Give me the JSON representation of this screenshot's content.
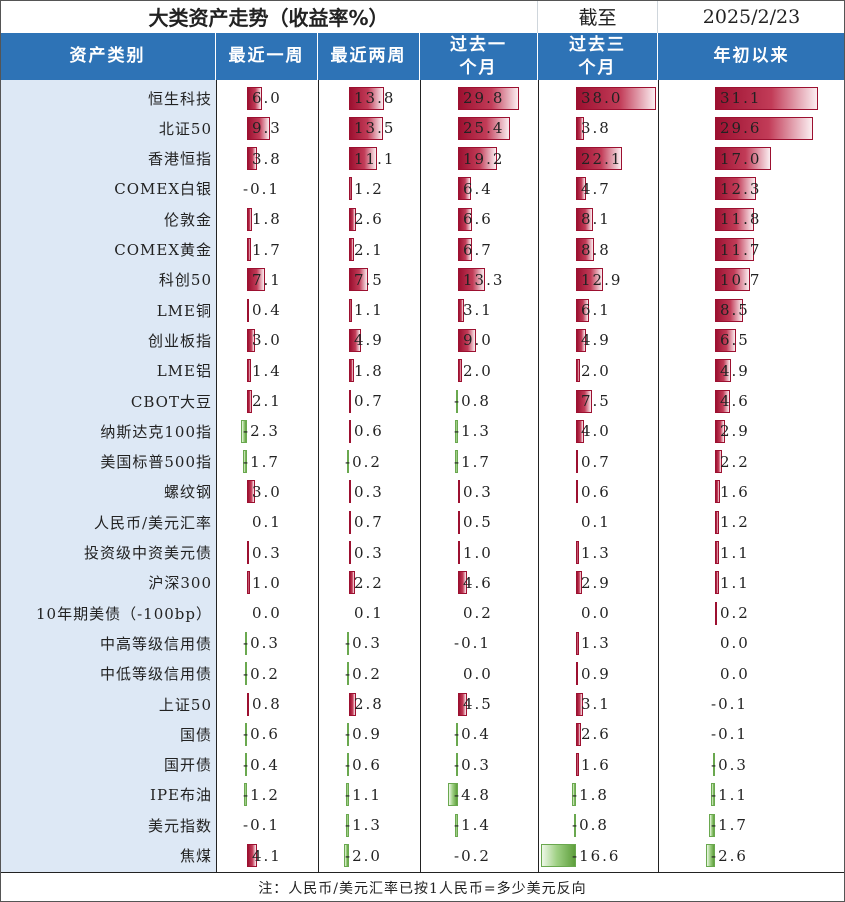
{
  "title": "大类资产走势（收益率%）",
  "as_of_label": "截至",
  "as_of_date": "2025/2/23",
  "headers": {
    "asset": "资产类别",
    "w1": "最近一周",
    "w2": "最近两周",
    "m1": "过去一个月",
    "m3": "过去三个月",
    "ytd": "年初以来"
  },
  "footnote": "注：人民币/美元汇率已按1人民币=多少美元反向",
  "colors": {
    "header_bg": "#2e73b6",
    "name_col_bg": "#dde8f5",
    "positive_bar": "#9c1030",
    "negative_bar": "#6aa84f"
  },
  "chart_data": {
    "type": "table",
    "columns": [
      "最近一周",
      "最近两周",
      "过去一个月",
      "过去三个月",
      "年初以来"
    ],
    "rows": [
      {
        "name": "恒生科技",
        "values": [
          "6.0",
          "13.8",
          "29.8",
          "38.0",
          "31.1"
        ]
      },
      {
        "name": "北证50",
        "values": [
          "9.3",
          "13.5",
          "25.4",
          "3.8",
          "29.6"
        ]
      },
      {
        "name": "香港恒指",
        "values": [
          "3.8",
          "11.1",
          "19.2",
          "22.1",
          "17.0"
        ]
      },
      {
        "name": "COMEX白银",
        "values": [
          "-0.1",
          "1.2",
          "6.4",
          "4.7",
          "12.3"
        ]
      },
      {
        "name": "伦敦金",
        "values": [
          "1.8",
          "2.6",
          "6.6",
          "8.1",
          "11.8"
        ]
      },
      {
        "name": "COMEX黄金",
        "values": [
          "1.7",
          "2.1",
          "6.7",
          "8.8",
          "11.7"
        ]
      },
      {
        "name": "科创50",
        "values": [
          "7.1",
          "7.5",
          "13.3",
          "12.9",
          "10.7"
        ]
      },
      {
        "name": "LME铜",
        "values": [
          "0.4",
          "1.1",
          "3.1",
          "6.1",
          "8.5"
        ]
      },
      {
        "name": "创业板指",
        "values": [
          "3.0",
          "4.9",
          "9.0",
          "4.9",
          "6.5"
        ]
      },
      {
        "name": "LME铝",
        "values": [
          "1.4",
          "1.8",
          "2.0",
          "2.0",
          "4.9"
        ]
      },
      {
        "name": "CBOT大豆",
        "values": [
          "2.1",
          "0.7",
          "-0.8",
          "7.5",
          "4.6"
        ]
      },
      {
        "name": "纳斯达克100指",
        "values": [
          "-2.3",
          "0.6",
          "-1.3",
          "4.0",
          "2.9"
        ]
      },
      {
        "name": "美国标普500指",
        "values": [
          "-1.7",
          "-0.2",
          "-1.7",
          "0.7",
          "2.2"
        ]
      },
      {
        "name": "螺纹钢",
        "values": [
          "3.0",
          "0.3",
          "0.3",
          "0.6",
          "1.6"
        ]
      },
      {
        "name": "人民币/美元汇率",
        "values": [
          "0.1",
          "0.7",
          "0.5",
          "0.1",
          "1.2"
        ]
      },
      {
        "name": "投资级中资美元债",
        "values": [
          "0.3",
          "0.3",
          "1.0",
          "1.3",
          "1.1"
        ]
      },
      {
        "name": "沪深300",
        "values": [
          "1.0",
          "2.2",
          "4.6",
          "2.9",
          "1.1"
        ]
      },
      {
        "name": "10年期美债（-100bp）",
        "values": [
          "0.0",
          "0.1",
          "0.2",
          "0.0",
          "0.2"
        ]
      },
      {
        "name": "中高等级信用债",
        "values": [
          "-0.3",
          "-0.3",
          "-0.1",
          "1.3",
          "0.0"
        ]
      },
      {
        "name": "中低等级信用债",
        "values": [
          "-0.2",
          "-0.2",
          "0.0",
          "0.9",
          "0.0"
        ]
      },
      {
        "name": "上证50",
        "values": [
          "0.8",
          "2.8",
          "4.5",
          "3.1",
          "-0.1"
        ]
      },
      {
        "name": "国债",
        "values": [
          "-0.6",
          "-0.9",
          "-0.4",
          "2.6",
          "-0.1"
        ]
      },
      {
        "name": "国开债",
        "values": [
          "-0.4",
          "-0.6",
          "-0.3",
          "1.6",
          "-0.3"
        ]
      },
      {
        "name": "IPE布油",
        "values": [
          "-1.2",
          "-1.1",
          "-4.8",
          "-1.8",
          "-1.1"
        ]
      },
      {
        "name": "美元指数",
        "values": [
          "-0.1",
          "-1.3",
          "-1.4",
          "-0.8",
          "-1.7"
        ]
      },
      {
        "name": "焦煤",
        "values": [
          "4.1",
          "-2.0",
          "-0.2",
          "-16.6",
          "-2.6"
        ]
      }
    ]
  }
}
